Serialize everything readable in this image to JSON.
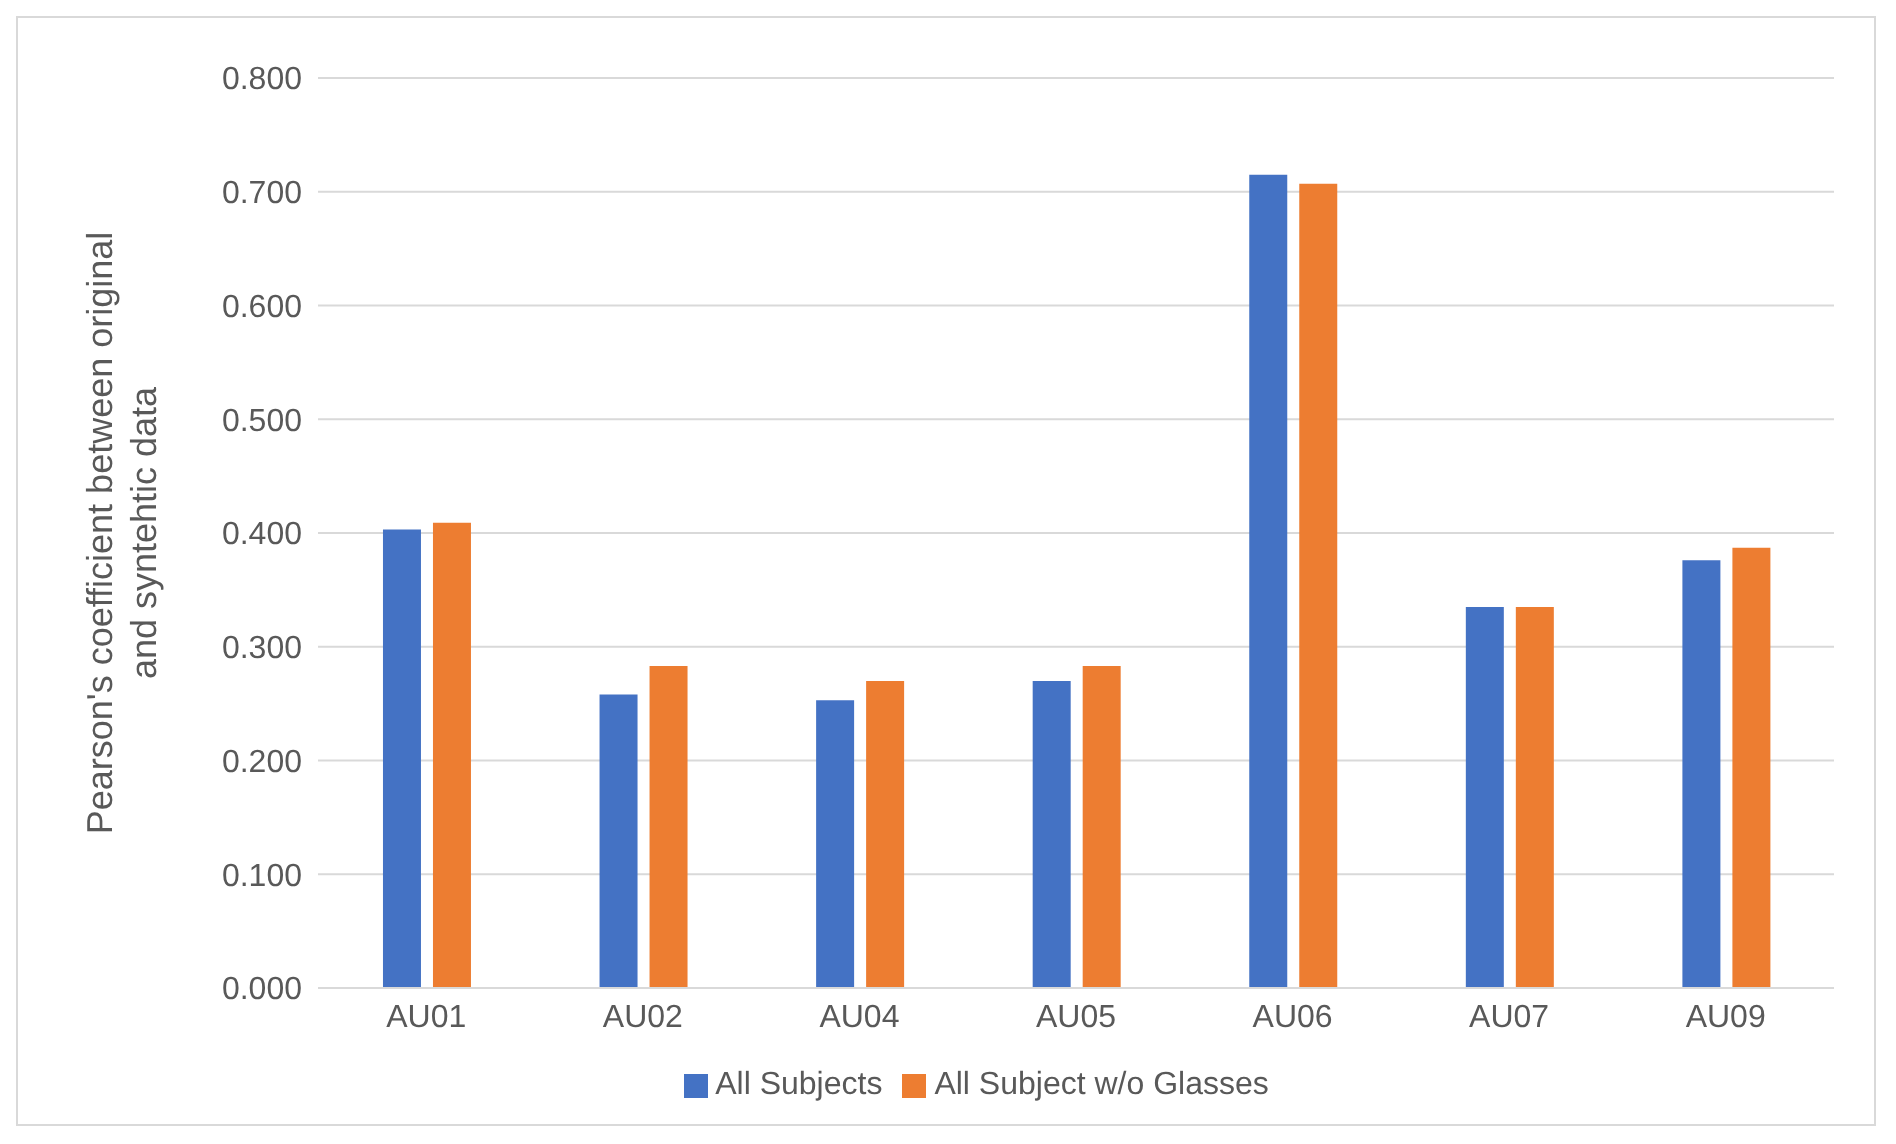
{
  "chart_data": {
    "type": "bar",
    "ylabel": "Pearson's coefficient between original and syntehtic data",
    "categories": [
      "AU01",
      "AU02",
      "AU04",
      "AU05",
      "AU06",
      "AU07",
      "AU09"
    ],
    "series": [
      {
        "name": "All Subjects",
        "color": "#4472c4",
        "values": [
          0.403,
          0.258,
          0.253,
          0.27,
          0.715,
          0.335,
          0.376
        ]
      },
      {
        "name": "All Subject w/o Glasses",
        "color": "#ed7d31",
        "values": [
          0.409,
          0.283,
          0.27,
          0.283,
          0.707,
          0.335,
          0.387
        ]
      }
    ],
    "ylim": [
      0,
      0.8
    ],
    "yticks": [
      {
        "value": 0,
        "label": "0.000"
      },
      {
        "value": 0.1,
        "label": "0.100"
      },
      {
        "value": 0.2,
        "label": "0.200"
      },
      {
        "value": 0.3,
        "label": "0.300"
      },
      {
        "value": 0.4,
        "label": "0.400"
      },
      {
        "value": 0.5,
        "label": "0.500"
      },
      {
        "value": 0.6,
        "label": "0.600"
      },
      {
        "value": 0.7,
        "label": "0.700"
      },
      {
        "value": 0.8,
        "label": "0.800"
      }
    ],
    "grid": "y",
    "legend": "bottom"
  }
}
